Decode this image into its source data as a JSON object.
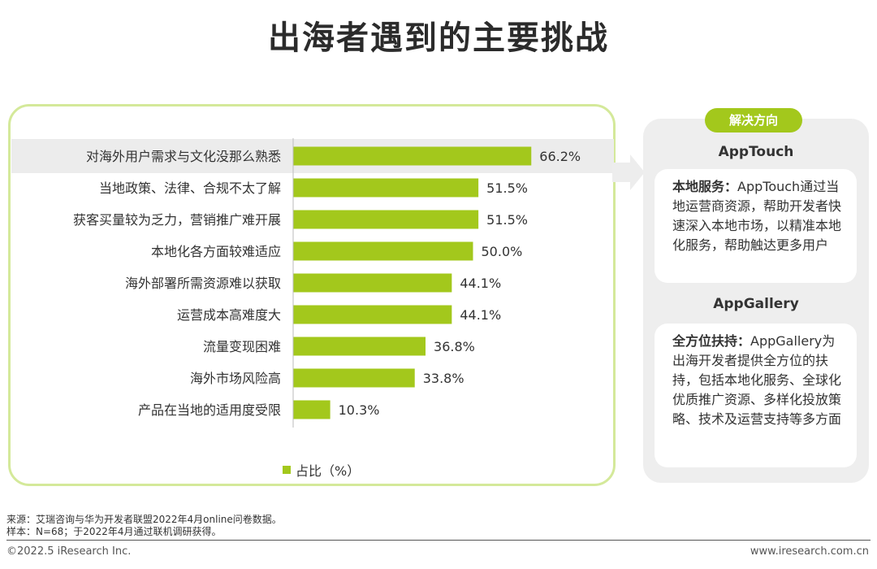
{
  "title": "出海者遇到的主要挑战",
  "chart_data": {
    "type": "bar",
    "orientation": "horizontal",
    "categories": [
      "对海外用户需求与文化没那么熟悉",
      "当地政策、法律、合规不太了解",
      "获客买量较为乏力，营销推广难开展",
      "本地化各方面较难适应",
      "海外部署所需资源难以获取",
      "运营成本高难度大",
      "流量变现困难",
      "海外市场风险高",
      "产品在当地的适用度受限"
    ],
    "values": [
      66.2,
      51.5,
      51.5,
      50.0,
      44.1,
      44.1,
      36.8,
      33.8,
      10.3
    ],
    "value_labels": [
      "66.2%",
      "51.5%",
      "51.5%",
      "50.0%",
      "44.1%",
      "44.1%",
      "36.8%",
      "33.8%",
      "10.3%"
    ],
    "series_name": "占比（%）",
    "highlight_index": 0,
    "xlim": [
      0,
      100
    ],
    "color": "#a3c81c"
  },
  "solutions": {
    "pill_label": "解决方向",
    "apptouch": {
      "title": "AppTouch",
      "lead": "本地服务：",
      "body": "AppTouch通过当地运营商资源，帮助开发者快速深入本地市场，以精准本地化服务，帮助触达更多用户"
    },
    "appgallery": {
      "title": "AppGallery",
      "lead": "全方位扶持：",
      "body": "AppGallery为出海开发者提供全方位的扶持，包括本地化服务、全球化优质推广资源、多样化投放策略、技术及运营支持等多方面"
    }
  },
  "footnotes": {
    "source": "来源：艾瑞咨询与华为开发者联盟2022年4月online问卷数据。",
    "sample": "样本：N=68；于2022年4月通过联机调研获得。"
  },
  "footer": {
    "left": "©2022.5 iResearch Inc.",
    "right": "www.iresearch.com.cn"
  },
  "colors": {
    "accent": "#a3c81c",
    "panel_border": "#d4e99a",
    "highlight_row": "#ececec"
  }
}
